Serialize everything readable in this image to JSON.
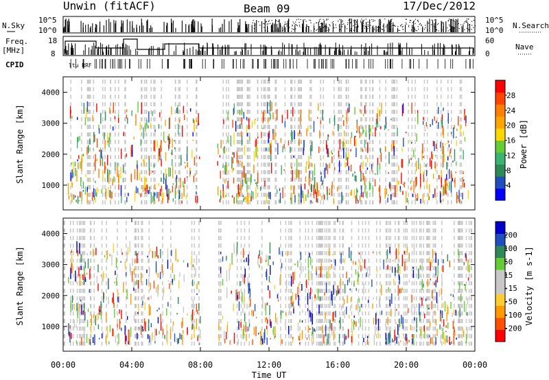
{
  "header": {
    "title": "Unwin (fitACF)",
    "beam": "Beam 09",
    "date": "17/Dec/2012"
  },
  "top_panels": {
    "nsky_label": "N.Sky",
    "nsky_ticks": [
      "10^5",
      "10^0"
    ],
    "nsearch_label": "N.Search",
    "nsearch_ticks": [
      "10^5",
      "10^0"
    ],
    "freq_label": "Freq.",
    "freq_unit": "[MHz]",
    "freq_ticks": [
      "18",
      "8"
    ],
    "nave_label": "Nave",
    "nave_ticks": [
      "60",
      "0"
    ],
    "cpid_label": "CPID",
    "cpid_text": "ltu RRF"
  },
  "colors": {
    "power_scale": [
      "#0000ff",
      "#1f4fbf",
      "#2e8b57",
      "#3cb371",
      "#66cc33",
      "#ffd700",
      "#ffa500",
      "#ff7f00",
      "#ff4500",
      "#ff0000"
    ],
    "velocity_scale": [
      "#ff0000",
      "#ff5000",
      "#ff9a00",
      "#ffcc33",
      "#c8c8c8",
      "#c8c8c8",
      "#66cc33",
      "#2e8b57",
      "#1f4fbf",
      "#0000cc"
    ],
    "ground_scatter": "#bebebe"
  },
  "chart_data": [
    {
      "type": "heatmap",
      "name": "power",
      "ylabel": "Slant Range [km]",
      "yticks": [
        1000,
        2000,
        3000,
        4000
      ],
      "ylim": [
        200,
        4500
      ],
      "xlim_hours": [
        0,
        24
      ],
      "colorbar_label": "Power [dB]",
      "colorbar_ticks": [
        "28",
        "24",
        "20",
        "16",
        "12",
        "8",
        "4"
      ]
    },
    {
      "type": "heatmap",
      "name": "velocity",
      "ylabel": "Slant Range [km]",
      "yticks": [
        1000,
        2000,
        3000,
        4000
      ],
      "ylim": [
        200,
        4500
      ],
      "xlim_hours": [
        0,
        24
      ],
      "colorbar_label": "Velocity [m s-1]",
      "colorbar_ticks": [
        "200",
        "100",
        "50",
        "15",
        "-15",
        "-50",
        "-100",
        "-200"
      ]
    }
  ],
  "x_axis": {
    "label": "Time UT",
    "ticks": [
      "00:00",
      "04:00",
      "08:00",
      "12:00",
      "16:00",
      "20:00",
      "00:00"
    ]
  }
}
